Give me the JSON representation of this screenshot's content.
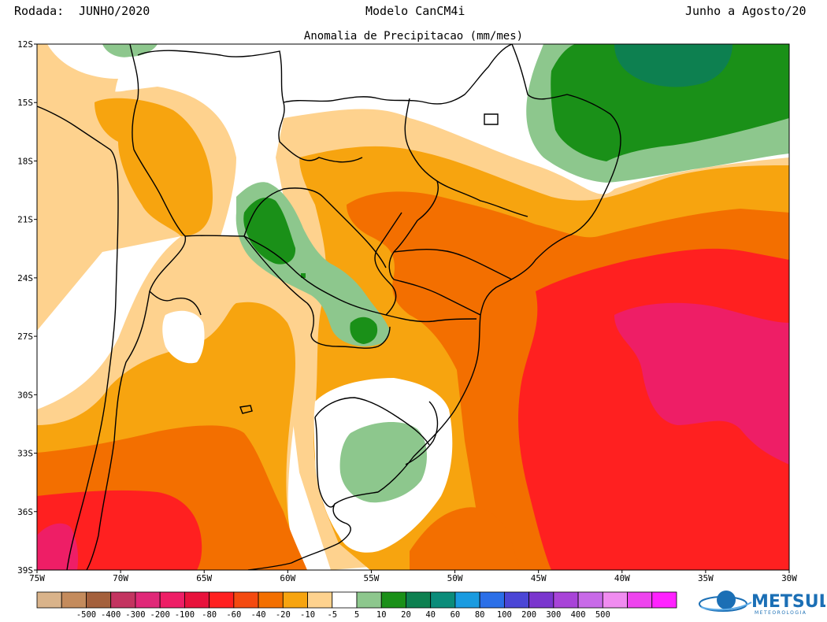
{
  "header": {
    "run_label": "Rodada:",
    "run_value": "JUNHO/2020",
    "model": "Modelo CanCM4i",
    "period": "Junho a Agosto/20"
  },
  "subtitle": "Anomalia de Precipitacao (mm/mes)",
  "map": {
    "lat_labels": [
      "12S",
      "15S",
      "18S",
      "21S",
      "24S",
      "27S",
      "30S",
      "33S",
      "36S",
      "39S"
    ],
    "lon_labels": [
      "75W",
      "70W",
      "65W",
      "60W",
      "55W",
      "50W",
      "45W",
      "40W",
      "35W",
      "30W"
    ],
    "extent": {
      "lon_min": -75,
      "lon_max": -30,
      "lat_min": -39,
      "lat_max": -12
    }
  },
  "legend": {
    "colors": [
      "#d9b38a",
      "#c48b5c",
      "#a4603c",
      "#c33460",
      "#e02878",
      "#ee1e66",
      "#e8123c",
      "#ff2020",
      "#f44a10",
      "#f36f00",
      "#f7a40f",
      "#fed28e",
      "#ffffff",
      "#8dc78d",
      "#1a9018",
      "#0d8050",
      "#0b8c7a",
      "#1a9be0",
      "#2b6fe8",
      "#4b46d6",
      "#7a36ce",
      "#a844d8",
      "#c86ae8",
      "#f08cf0",
      "#ee44ee",
      "#ff22ff"
    ],
    "labels": [
      "-500",
      "-400",
      "-300",
      "-200",
      "-100",
      "-80",
      "-60",
      "-40",
      "-20",
      "-10",
      "-5",
      "5",
      "10",
      "20",
      "40",
      "60",
      "80",
      "100",
      "200",
      "300",
      "400",
      "500"
    ]
  },
  "logo": {
    "name": "METSUL",
    "tagline": "METEOROLOGIA",
    "icon": "globe-swoosh-icon",
    "color": "#1b6fb5"
  },
  "palette": {
    "light_orange": "#fed28e",
    "orange": "#f7a40f",
    "dark_orange": "#f36f00",
    "red_orange": "#f44a10",
    "red": "#ff2020",
    "crimson": "#ee1e66",
    "light_green": "#8dc78d",
    "green": "#1a9018",
    "teal": "#0d8050"
  }
}
